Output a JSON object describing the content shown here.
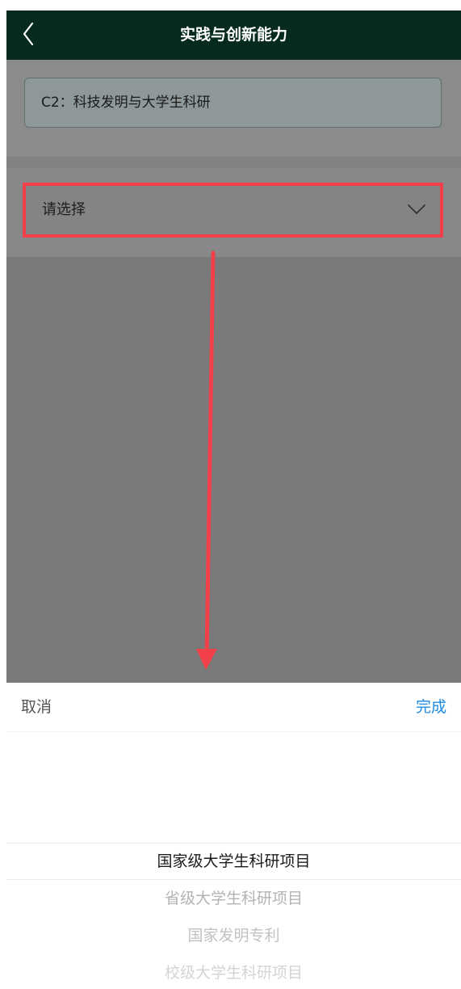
{
  "header": {
    "title": "实践与创新能力",
    "back_icon": "chevron-left-icon"
  },
  "category": {
    "value": "C2：科技发明与大学生科研"
  },
  "select": {
    "placeholder": "请选择",
    "icon": "chevron-down-icon",
    "highlight_color": "#f2404a"
  },
  "annotation": {
    "arrow_color": "#f2404a"
  },
  "picker": {
    "cancel_label": "取消",
    "done_label": "完成",
    "done_color": "#1e8ae6",
    "options": [
      "国家级大学生科研项目",
      "省级大学生科研项目",
      "国家发明专利",
      "校级大学生科研项目"
    ],
    "selected_index": 0
  },
  "colors": {
    "header_bg": "#062a20",
    "overlay": "#7a7a7a"
  }
}
